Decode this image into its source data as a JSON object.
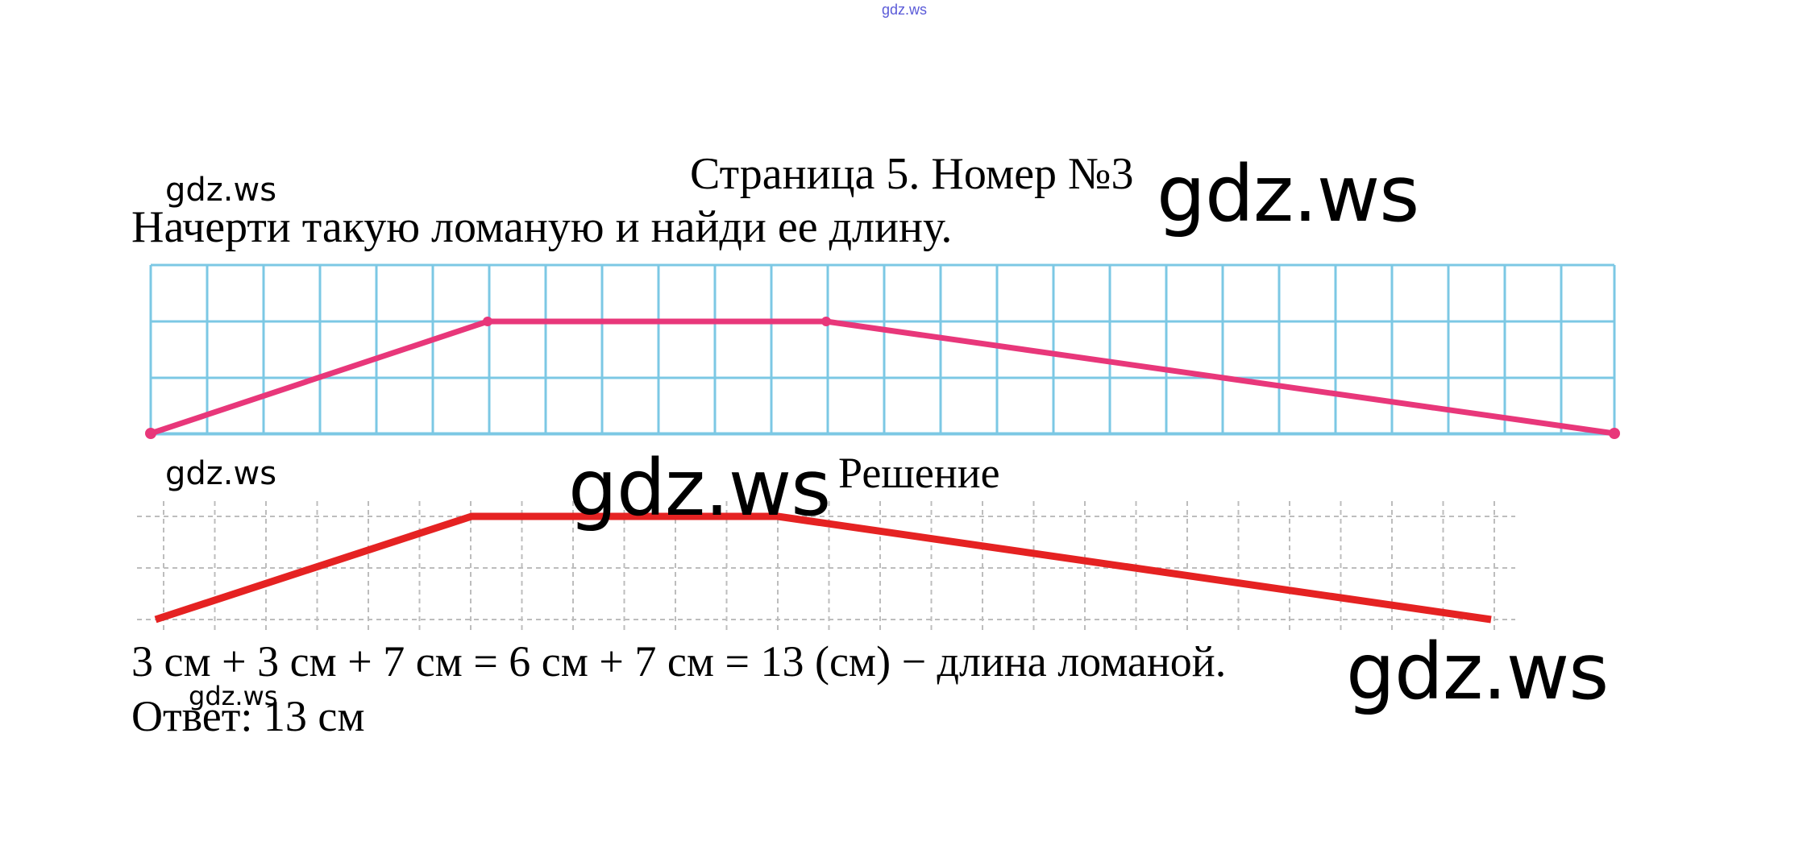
{
  "header": {
    "top_link": "gdz.ws"
  },
  "title": "Страница 5. Номер №3",
  "task": "Начерти такую ломаную и найди ее длину.",
  "solution": {
    "heading": "Решение",
    "calculation": "3 см + 3 см + 7 см = 6 см + 7 см = 13 (см) − длина ломаной.",
    "answer": "Ответ: 13 см"
  },
  "watermarks": [
    "gdz.ws",
    "gdz.ws",
    "gdz.ws",
    "gdz.ws",
    "gdz.ws",
    "gdz.ws"
  ],
  "colors": {
    "grid_task": "#7cc8e4",
    "line_task": "#e8377a",
    "grid_solution": "#bdbdbd",
    "line_solution": "#e52222"
  }
}
